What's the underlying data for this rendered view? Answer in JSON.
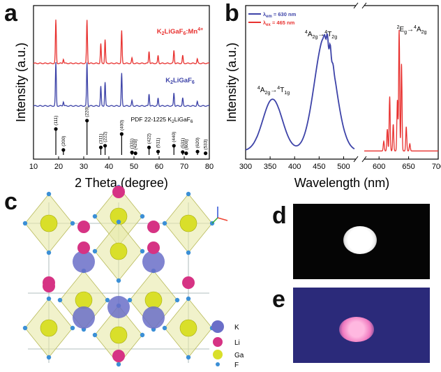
{
  "panels": {
    "a": "a",
    "b": "b",
    "c": "c",
    "d": "d",
    "e": "e"
  },
  "colors": {
    "red": "#e8312f",
    "blue": "#3d43a8",
    "black": "#000000"
  },
  "chart_data": [
    {
      "type": "line",
      "panel": "a",
      "xlabel": "2 Theta (degree)",
      "ylabel": "Intensity (a.u.)",
      "xlim": [
        10,
        80
      ],
      "xticks": [
        "10",
        "20",
        "30",
        "40",
        "50",
        "60",
        "70",
        "80"
      ],
      "series": [
        {
          "name": "K2LiGaF6:Mn4+",
          "label_main": "K",
          "label_parts": [
            "2",
            "LiGaF",
            "6",
            "Mn",
            "4+"
          ],
          "color": "#e8312f",
          "peaks": [
            [
              18.9,
              1.0
            ],
            [
              21.9,
              0.1
            ],
            [
              31.3,
              1.0
            ],
            [
              36.8,
              0.45
            ],
            [
              38.5,
              0.55
            ],
            [
              45.1,
              0.75
            ],
            [
              49.2,
              0.12
            ],
            [
              56.0,
              0.28
            ],
            [
              59.6,
              0.18
            ],
            [
              65.9,
              0.3
            ],
            [
              69.4,
              0.18
            ],
            [
              75.2,
              0.1
            ]
          ]
        },
        {
          "name": "K2LiGaF6",
          "color": "#3d43a8",
          "peaks": [
            [
              18.9,
              1.0
            ],
            [
              21.9,
              0.1
            ],
            [
              31.3,
              1.0
            ],
            [
              36.8,
              0.45
            ],
            [
              38.5,
              0.55
            ],
            [
              45.1,
              0.75
            ],
            [
              49.2,
              0.12
            ],
            [
              56.0,
              0.28
            ],
            [
              59.6,
              0.18
            ],
            [
              65.9,
              0.3
            ],
            [
              69.4,
              0.18
            ],
            [
              75.2,
              0.1
            ]
          ]
        }
      ],
      "reference": {
        "name": "PDF 22-1225 K2LiGaF6",
        "sticks": [
          {
            "x": 18.9,
            "h": 0.62,
            "hkl": "(111)"
          },
          {
            "x": 21.9,
            "h": 0.12,
            "hkl": "(200)"
          },
          {
            "x": 31.3,
            "h": 0.82,
            "hkl": "(220)"
          },
          {
            "x": 36.8,
            "h": 0.18,
            "hkl": "(311)"
          },
          {
            "x": 38.5,
            "h": 0.22,
            "hkl": "(222)"
          },
          {
            "x": 45.1,
            "h": 0.5,
            "hkl": "(400)"
          },
          {
            "x": 49.2,
            "h": 0.06,
            "hkl": "(331)"
          },
          {
            "x": 50.6,
            "h": 0.04,
            "hkl": "(420)"
          },
          {
            "x": 56.0,
            "h": 0.18,
            "hkl": "(422)"
          },
          {
            "x": 59.6,
            "h": 0.08,
            "hkl": "(511)"
          },
          {
            "x": 65.9,
            "h": 0.22,
            "hkl": "(440)"
          },
          {
            "x": 69.4,
            "h": 0.07,
            "hkl": "(531)"
          },
          {
            "x": 70.8,
            "h": 0.04,
            "hkl": "(600)"
          },
          {
            "x": 75.3,
            "h": 0.08,
            "hkl": "(620)"
          },
          {
            "x": 78.5,
            "h": 0.04,
            "hkl": "(533)"
          }
        ]
      }
    },
    {
      "type": "line",
      "panel": "b",
      "xlabel": "Wavelength (nm)",
      "ylabel": "Intensity (a.u.)",
      "xticks_left": [
        "300",
        "350",
        "400",
        "450",
        "500"
      ],
      "xticks_right": [
        "600",
        "650",
        "700"
      ],
      "legend": [
        {
          "name": "λem = 630 nm",
          "color": "#3d43a8"
        },
        {
          "name": "λex = 465 nm",
          "color": "#e8312f"
        }
      ],
      "annotations": [
        "4A2g→4T1g",
        "4A2g→4T2g",
        "2Eg→4A2g"
      ],
      "excitation": {
        "color": "#3d43a8",
        "peaks": [
          {
            "center": 355,
            "height": 0.45,
            "width": 28
          },
          {
            "center": 462,
            "height": 1.0,
            "width": 30
          }
        ]
      },
      "emission": {
        "color": "#e8312f",
        "lines": [
          [
            608,
            0.08
          ],
          [
            614,
            0.18
          ],
          [
            618,
            0.45
          ],
          [
            624,
            0.22
          ],
          [
            631,
            0.42
          ],
          [
            634,
            1.0
          ],
          [
            638,
            0.72
          ],
          [
            646,
            0.2
          ],
          [
            652,
            0.06
          ]
        ]
      }
    }
  ],
  "crystal_legend": [
    {
      "label": "K",
      "color": "#6a6ec8"
    },
    {
      "label": "Li",
      "color": "#d63384"
    },
    {
      "label": "Ga",
      "color": "#d9df2a"
    },
    {
      "label": "F",
      "color": "#3b8fd6"
    }
  ]
}
